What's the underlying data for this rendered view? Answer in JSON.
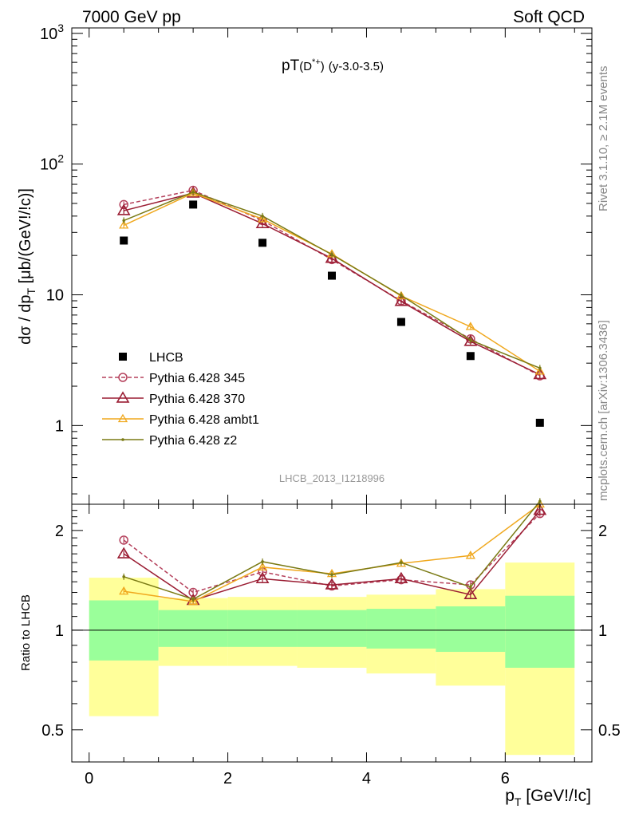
{
  "header": {
    "left": "7000 GeV pp",
    "right": "Soft QCD"
  },
  "side": {
    "top": "Rivet 3.1.10, ≥ 2.1M events",
    "bottom": "mcplots.cern.ch [arXiv:1306.3436]"
  },
  "chart_data": [
    {
      "type": "scatter",
      "title": "pT(D*+) (y-3.0-3.5)",
      "title_main": "pT",
      "title_paren": "(D",
      "title_sup": "*+",
      "title_close": ")",
      "title_rest": "(y-3.0-3.5)",
      "ylabel": "dσ / dp_T [μb/(GeV!/!c)]",
      "ylabel_main": "dσ / dp",
      "ylabel_sub": "T",
      "ylabel_rest": " [μb/(GeV!/!c)]",
      "yscale": "log",
      "ylim": [
        0.25,
        1100
      ],
      "xlim": [
        -0.25,
        7.25
      ],
      "y_ticks": [
        {
          "v": 1,
          "base": "1",
          "exp": ""
        },
        {
          "v": 10,
          "base": "10",
          "exp": ""
        },
        {
          "v": 100,
          "base": "10",
          "exp": "2"
        },
        {
          "v": 1000,
          "base": "10",
          "exp": "3"
        }
      ],
      "watermark": "LHCB_2013_I1218996",
      "legend_position": "lower-left",
      "data": {
        "name": "LHCB",
        "x": [
          0.5,
          1.5,
          2.5,
          3.5,
          4.5,
          5.5,
          6.5
        ],
        "y": [
          26,
          49,
          25,
          14,
          6.2,
          3.4,
          1.05
        ]
      },
      "series": [
        {
          "name": "Pythia 6.428 345",
          "color": "#b5415c",
          "marker": "circle",
          "dash": true,
          "x": [
            0.5,
            1.5,
            2.5,
            3.5,
            4.5,
            5.5,
            6.5
          ],
          "y": [
            49,
            63,
            37,
            18.6,
            9.0,
            4.6,
            2.4
          ]
        },
        {
          "name": "Pythia 6.428 370",
          "color": "#9a1c32",
          "marker": "triangle",
          "dash": false,
          "x": [
            0.5,
            1.5,
            2.5,
            3.5,
            4.5,
            5.5,
            6.5
          ],
          "y": [
            44,
            60,
            35,
            19.0,
            8.9,
            4.4,
            2.45
          ]
        },
        {
          "name": "Pythia 6.428 ambt1",
          "color": "#f0a81e",
          "marker": "triangle-small",
          "dash": false,
          "x": [
            0.5,
            1.5,
            2.5,
            3.5,
            4.5,
            5.5,
            6.5
          ],
          "y": [
            34,
            60,
            38,
            20.5,
            9.8,
            5.7,
            2.6
          ]
        },
        {
          "name": "Pythia 6.428 z2",
          "color": "#7a7a14",
          "marker": "dot",
          "dash": false,
          "x": [
            0.5,
            1.5,
            2.5,
            3.5,
            4.5,
            5.5,
            6.5
          ],
          "y": [
            37,
            61,
            40,
            20.3,
            9.9,
            4.5,
            2.75
          ]
        }
      ]
    },
    {
      "type": "scatter",
      "ylabel": "Ratio to LHCB",
      "yscale": "log",
      "ylim": [
        0.4,
        2.4
      ],
      "xlim": [
        -0.25,
        7.25
      ],
      "xlabel": "p_T [GeV!/!c]",
      "xlabel_main": "p",
      "xlabel_sub": "T",
      "xlabel_rest": " [GeV!/!c]",
      "x_ticks": [
        0,
        2,
        4,
        6
      ],
      "y_ticks": [
        0.5,
        1,
        2
      ],
      "bands": {
        "bin_edges": [
          0,
          1,
          2,
          3,
          4,
          5,
          6,
          7
        ],
        "inner": [
          [
            0.81,
            1.23
          ],
          [
            0.89,
            1.15
          ],
          [
            0.89,
            1.15
          ],
          [
            0.89,
            1.15
          ],
          [
            0.88,
            1.16
          ],
          [
            0.86,
            1.18
          ],
          [
            0.77,
            1.27
          ]
        ],
        "outer": [
          [
            0.55,
            1.44
          ],
          [
            0.78,
            1.25
          ],
          [
            0.78,
            1.26
          ],
          [
            0.77,
            1.26
          ],
          [
            0.74,
            1.28
          ],
          [
            0.68,
            1.33
          ],
          [
            0.42,
            1.6
          ]
        ],
        "inner_color": "#9aff9a",
        "outer_color": "#ffff9a"
      },
      "series": [
        {
          "name": "Pythia 6.428 345",
          "color": "#b5415c",
          "marker": "circle",
          "dash": true,
          "x": [
            0.5,
            1.5,
            2.5,
            3.5,
            4.5,
            5.5,
            6.5
          ],
          "y": [
            1.87,
            1.3,
            1.5,
            1.36,
            1.42,
            1.37,
            2.25
          ]
        },
        {
          "name": "Pythia 6.428 370",
          "color": "#9a1c32",
          "marker": "triangle",
          "dash": false,
          "x": [
            0.5,
            1.5,
            2.5,
            3.5,
            4.5,
            5.5,
            6.5
          ],
          "y": [
            1.7,
            1.23,
            1.43,
            1.37,
            1.43,
            1.28,
            2.3
          ]
        },
        {
          "name": "Pythia 6.428 ambt1",
          "color": "#f0a81e",
          "marker": "triangle-small",
          "dash": false,
          "x": [
            0.5,
            1.5,
            2.5,
            3.5,
            4.5,
            5.5,
            6.5
          ],
          "y": [
            1.31,
            1.22,
            1.55,
            1.48,
            1.59,
            1.68,
            2.4
          ]
        },
        {
          "name": "Pythia 6.428 z2",
          "color": "#7a7a14",
          "marker": "dot",
          "dash": false,
          "x": [
            0.5,
            1.5,
            2.5,
            3.5,
            4.5,
            5.5,
            6.5
          ],
          "y": [
            1.45,
            1.24,
            1.61,
            1.47,
            1.6,
            1.35,
            2.45
          ]
        }
      ]
    }
  ]
}
